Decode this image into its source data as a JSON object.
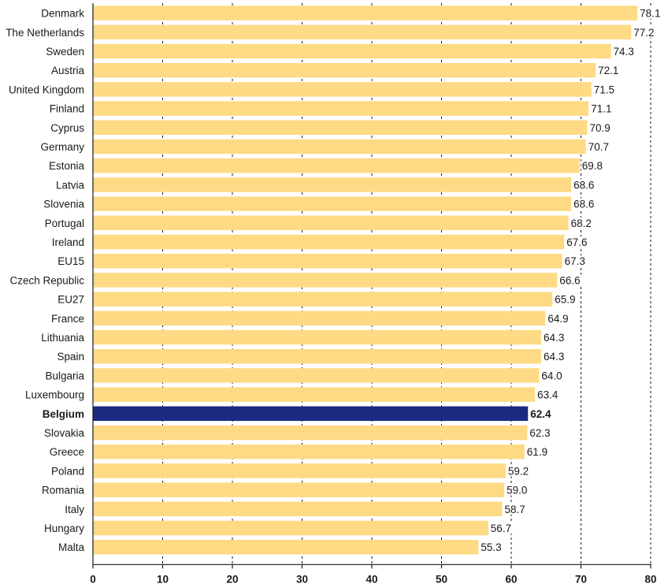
{
  "chart_data": {
    "type": "bar",
    "orientation": "horizontal",
    "categories": [
      "Denmark",
      "The Netherlands",
      "Sweden",
      "Austria",
      "United Kingdom",
      "Finland",
      "Cyprus",
      "Germany",
      "Estonia",
      "Latvia",
      "Slovenia",
      "Portugal",
      "Ireland",
      "EU15",
      "Czech Republic",
      "EU27",
      "France",
      "Lithuania",
      "Spain",
      "Bulgaria",
      "Luxembourg",
      "Belgium",
      "Slovakia",
      "Greece",
      "Poland",
      "Romania",
      "Italy",
      "Hungary",
      "Malta"
    ],
    "values": [
      78.1,
      77.2,
      74.3,
      72.1,
      71.5,
      71.1,
      70.9,
      70.7,
      69.8,
      68.6,
      68.6,
      68.2,
      67.6,
      67.3,
      66.6,
      65.9,
      64.9,
      64.3,
      64.3,
      64.0,
      63.4,
      62.4,
      62.3,
      61.9,
      59.2,
      59.0,
      58.7,
      56.7,
      55.3
    ],
    "value_labels": [
      "78.1",
      "77.2",
      "74.3",
      "72.1",
      "71.5",
      "71.1",
      "70.9",
      "70.7",
      "69.8",
      "68.6",
      "68.6",
      "68.2",
      "67.6",
      "67.3",
      "66.6",
      "65.9",
      "64.9",
      "64.3",
      "64.3",
      "64.0",
      "63.4",
      "62.4",
      "62.3",
      "61.9",
      "59.2",
      "59.0",
      "58.7",
      "56.7",
      "55.3"
    ],
    "highlight": "Belgium",
    "xlim": [
      0,
      80
    ],
    "xticks": [
      0,
      10,
      20,
      30,
      40,
      50,
      60,
      70,
      80
    ],
    "xtick_labels": [
      "0",
      "10",
      "20",
      "30",
      "40",
      "50",
      "60",
      "70",
      "80"
    ],
    "grid": "vertical dashed",
    "title": "",
    "xlabel": "",
    "ylabel": "",
    "colors": {
      "bar": "#FEDA85",
      "highlight": "#1B2A80",
      "axis": "#1a1a1a",
      "grid": "#1a1a1a"
    }
  }
}
